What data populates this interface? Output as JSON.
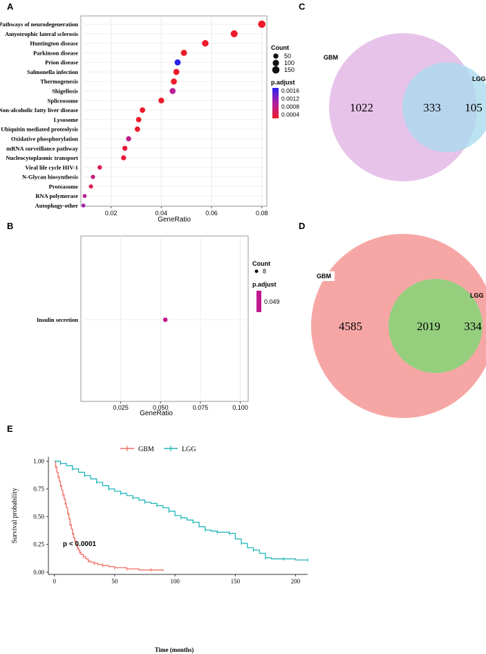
{
  "panel_labels": {
    "a": "A",
    "b": "B",
    "c": "C",
    "d": "D",
    "e": "E"
  },
  "chart_data": [
    {
      "panel": "A",
      "type": "scatter",
      "xlabel": "GeneRatio",
      "xlim": [
        0.008,
        0.082
      ],
      "xticks": [
        0.02,
        0.04,
        0.06,
        0.08
      ],
      "xtick_labels": [
        "0.02",
        "0.04",
        "0.06",
        "0.08"
      ],
      "categories": [
        "Pathways of neurodegeneration",
        "Amyotrophic lateral sclerosis",
        "Huntington disease",
        "Parkinson disease",
        "Prion disease",
        "Salmonella infection",
        "Thermogenesis",
        "Shigellosis",
        "Spliceosome",
        "Non-alcoholic fatty liver disease",
        "Lysosome",
        "Ubiquitin mediated proteolysis",
        "Oxidative phosphorylation",
        "mRNA surveillance pathway",
        "Nucleocytoplasmic transport",
        "Viral life cycle HIV-1",
        "N-Glycan biosynthesis",
        "Proteasome",
        "RNA polymerase",
        "Autophagy-other"
      ],
      "gene_ratio": [
        0.08,
        0.069,
        0.0575,
        0.049,
        0.0465,
        0.046,
        0.045,
        0.0445,
        0.04,
        0.0325,
        0.031,
        0.0305,
        0.027,
        0.0255,
        0.025,
        0.0155,
        0.0128,
        0.012,
        0.0095,
        0.009
      ],
      "count": [
        152,
        131,
        110,
        92,
        88,
        87,
        85,
        84,
        76,
        62,
        59,
        58,
        51,
        48,
        47,
        29,
        24,
        23,
        18,
        17
      ],
      "p_adjust": [
        0.0001,
        0.0001,
        0.0001,
        0.0001,
        0.0019,
        0.0001,
        0.0001,
        0.0009,
        0.0001,
        0.0001,
        0.0001,
        0.0001,
        0.0008,
        0.0002,
        0.0002,
        0.0004,
        0.0007,
        0.0004,
        0.0009,
        0.0011
      ],
      "legend": {
        "count_title": "Count",
        "count_labels": [
          "50",
          "100",
          "150"
        ],
        "count_values": [
          50,
          100,
          150
        ],
        "padj_title": "p.adjust",
        "padj_labels": [
          "0.0016",
          "0.0012",
          "0.0008",
          "0.0004"
        ],
        "padj_range": [
          0.0001,
          0.0019
        ]
      }
    },
    {
      "panel": "B",
      "type": "scatter",
      "xlabel": "GeneRatio",
      "xlim": [
        0.0,
        0.105
      ],
      "xticks": [
        0.025,
        0.05,
        0.075,
        0.1
      ],
      "xtick_labels": [
        "0.025",
        "0.050",
        "0.075",
        "0.100"
      ],
      "categories": [
        "Insulin secretion"
      ],
      "gene_ratio": [
        0.053
      ],
      "count": [
        8
      ],
      "p_adjust": [
        0.049
      ],
      "legend": {
        "count_title": "Count",
        "count_labels": [
          "8"
        ],
        "padj_title": "p.adjust",
        "padj_labels": [
          "0.049"
        ]
      }
    },
    {
      "panel": "C",
      "type": "venn",
      "sets": [
        "GBM",
        "LGG"
      ],
      "only_first": "1022",
      "overlap": "333",
      "only_second": "105",
      "colors": [
        "#e7c3ea",
        "#a9daed"
      ]
    },
    {
      "panel": "D",
      "type": "venn",
      "sets": [
        "GBM",
        "LGG"
      ],
      "only_first": "4585",
      "overlap": "2019",
      "only_second": "334",
      "colors": [
        "#f6a7a5",
        "#8bd47a"
      ]
    },
    {
      "panel": "E",
      "type": "line",
      "title": "",
      "xlabel": "Time (months)",
      "ylabel": "Survival probability",
      "xlim": [
        -5,
        210
      ],
      "ylim": [
        -0.02,
        1.04
      ],
      "xticks": [
        0,
        50,
        100,
        150,
        200
      ],
      "xtick_labels": [
        "0",
        "50",
        "100",
        "150",
        "200"
      ],
      "yticks": [
        0.0,
        0.25,
        0.5,
        0.75,
        1.0
      ],
      "ytick_labels": [
        "0.00",
        "0.25",
        "0.50",
        "0.75",
        "1.00"
      ],
      "annotation": "p < 0.0001",
      "legend": [
        {
          "name": "GBM",
          "color": "#ee6f62"
        },
        {
          "name": "LGG",
          "color": "#1fb5b9"
        }
      ],
      "series": [
        {
          "name": "GBM",
          "color": "#ee6f62",
          "x": [
            0,
            1,
            2,
            3,
            4,
            5,
            6,
            7,
            8,
            9,
            10,
            11,
            12,
            13,
            14,
            15,
            16,
            17,
            18,
            19,
            20,
            21,
            22,
            24,
            26,
            28,
            30,
            33,
            36,
            40,
            45,
            50,
            55,
            60,
            70,
            80,
            90
          ],
          "y": [
            1.0,
            0.95,
            0.9,
            0.86,
            0.82,
            0.78,
            0.74,
            0.7,
            0.66,
            0.62,
            0.58,
            0.53,
            0.48,
            0.43,
            0.39,
            0.35,
            0.31,
            0.28,
            0.25,
            0.22,
            0.2,
            0.18,
            0.16,
            0.14,
            0.12,
            0.1,
            0.09,
            0.08,
            0.07,
            0.06,
            0.05,
            0.04,
            0.04,
            0.03,
            0.02,
            0.02,
            0.01
          ]
        },
        {
          "name": "LGG",
          "color": "#1fb5b9",
          "x": [
            0,
            5,
            10,
            15,
            20,
            25,
            30,
            35,
            40,
            45,
            50,
            55,
            60,
            65,
            70,
            75,
            80,
            85,
            90,
            95,
            100,
            105,
            110,
            115,
            120,
            125,
            130,
            135,
            140,
            145,
            150,
            155,
            160,
            165,
            170,
            175,
            180,
            190,
            200,
            210
          ],
          "y": [
            1.0,
            0.98,
            0.96,
            0.93,
            0.9,
            0.87,
            0.84,
            0.81,
            0.78,
            0.75,
            0.73,
            0.71,
            0.69,
            0.67,
            0.65,
            0.63,
            0.62,
            0.6,
            0.58,
            0.55,
            0.51,
            0.49,
            0.47,
            0.45,
            0.41,
            0.38,
            0.37,
            0.36,
            0.36,
            0.35,
            0.3,
            0.26,
            0.22,
            0.2,
            0.17,
            0.13,
            0.12,
            0.12,
            0.11,
            0.11
          ]
        }
      ]
    }
  ]
}
